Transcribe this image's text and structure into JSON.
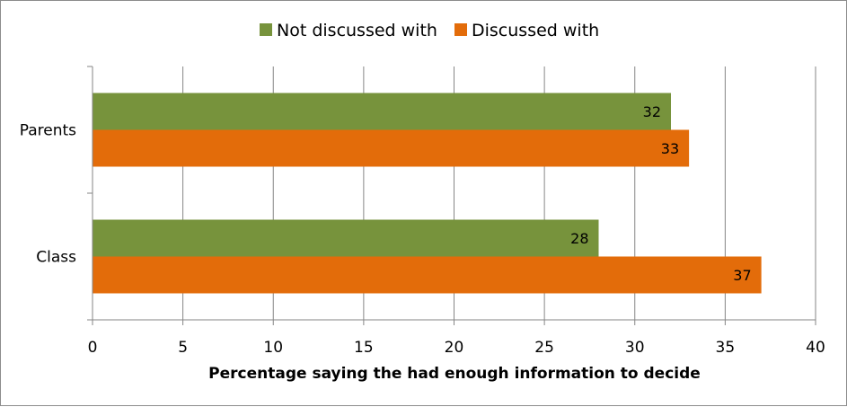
{
  "chart_data": {
    "type": "bar",
    "orientation": "horizontal",
    "categories": [
      "Parents",
      "Class"
    ],
    "series": [
      {
        "name": "Not discussed with",
        "color": "#77933c",
        "values": [
          32,
          28
        ]
      },
      {
        "name": "Discussed with",
        "color": "#e36c0a",
        "values": [
          33,
          37
        ]
      }
    ],
    "xlabel": "Percentage saying the had enough information to decide",
    "ylabel": "",
    "xlim": [
      0,
      40
    ],
    "xticks": [
      0,
      5,
      10,
      15,
      20,
      25,
      30,
      35,
      40
    ],
    "grid": true,
    "legend_position": "top",
    "data_labels": true
  }
}
